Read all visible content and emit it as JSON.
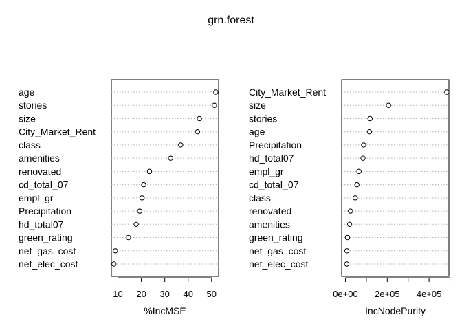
{
  "chart_data": [
    {
      "type": "dotchart",
      "title": "grn.forest",
      "xlabel": "%IncMSE",
      "categories": [
        "age",
        "stories",
        "size",
        "City_Market_Rent",
        "class",
        "amenities",
        "renovated",
        "cd_total_07",
        "empl_gr",
        "Precipitation",
        "hd_total07",
        "green_rating",
        "net_gas_cost",
        "net_elec_cost"
      ],
      "values": [
        51.8,
        51.2,
        44.8,
        44.0,
        36.8,
        32.5,
        23.5,
        21.0,
        20.3,
        19.3,
        17.8,
        14.5,
        8.9,
        8.3
      ],
      "xticks": [
        10,
        20,
        30,
        40,
        50
      ],
      "xtick_labels": [
        "10",
        "20",
        "30",
        "40",
        "50"
      ],
      "xlim": [
        7.2,
        53
      ]
    },
    {
      "type": "dotchart",
      "xlabel": "IncNodePurity",
      "categories": [
        "City_Market_Rent",
        "size",
        "stories",
        "age",
        "Precipitation",
        "hd_total07",
        "empl_gr",
        "cd_total_07",
        "class",
        "renovated",
        "amenities",
        "green_rating",
        "net_gas_cost",
        "net_elec_cost"
      ],
      "values": [
        485000,
        206000,
        118000,
        115000,
        87000,
        84000,
        65000,
        55000,
        47000,
        24000,
        20000,
        10000,
        7000,
        6000
      ],
      "xticks": [
        0,
        100000,
        200000,
        300000,
        400000,
        500000
      ],
      "xtick_labels": [
        "0e+00",
        "",
        "2e+05",
        "",
        "4e+05",
        ""
      ],
      "xlim": [
        -18000,
        495000
      ]
    }
  ]
}
